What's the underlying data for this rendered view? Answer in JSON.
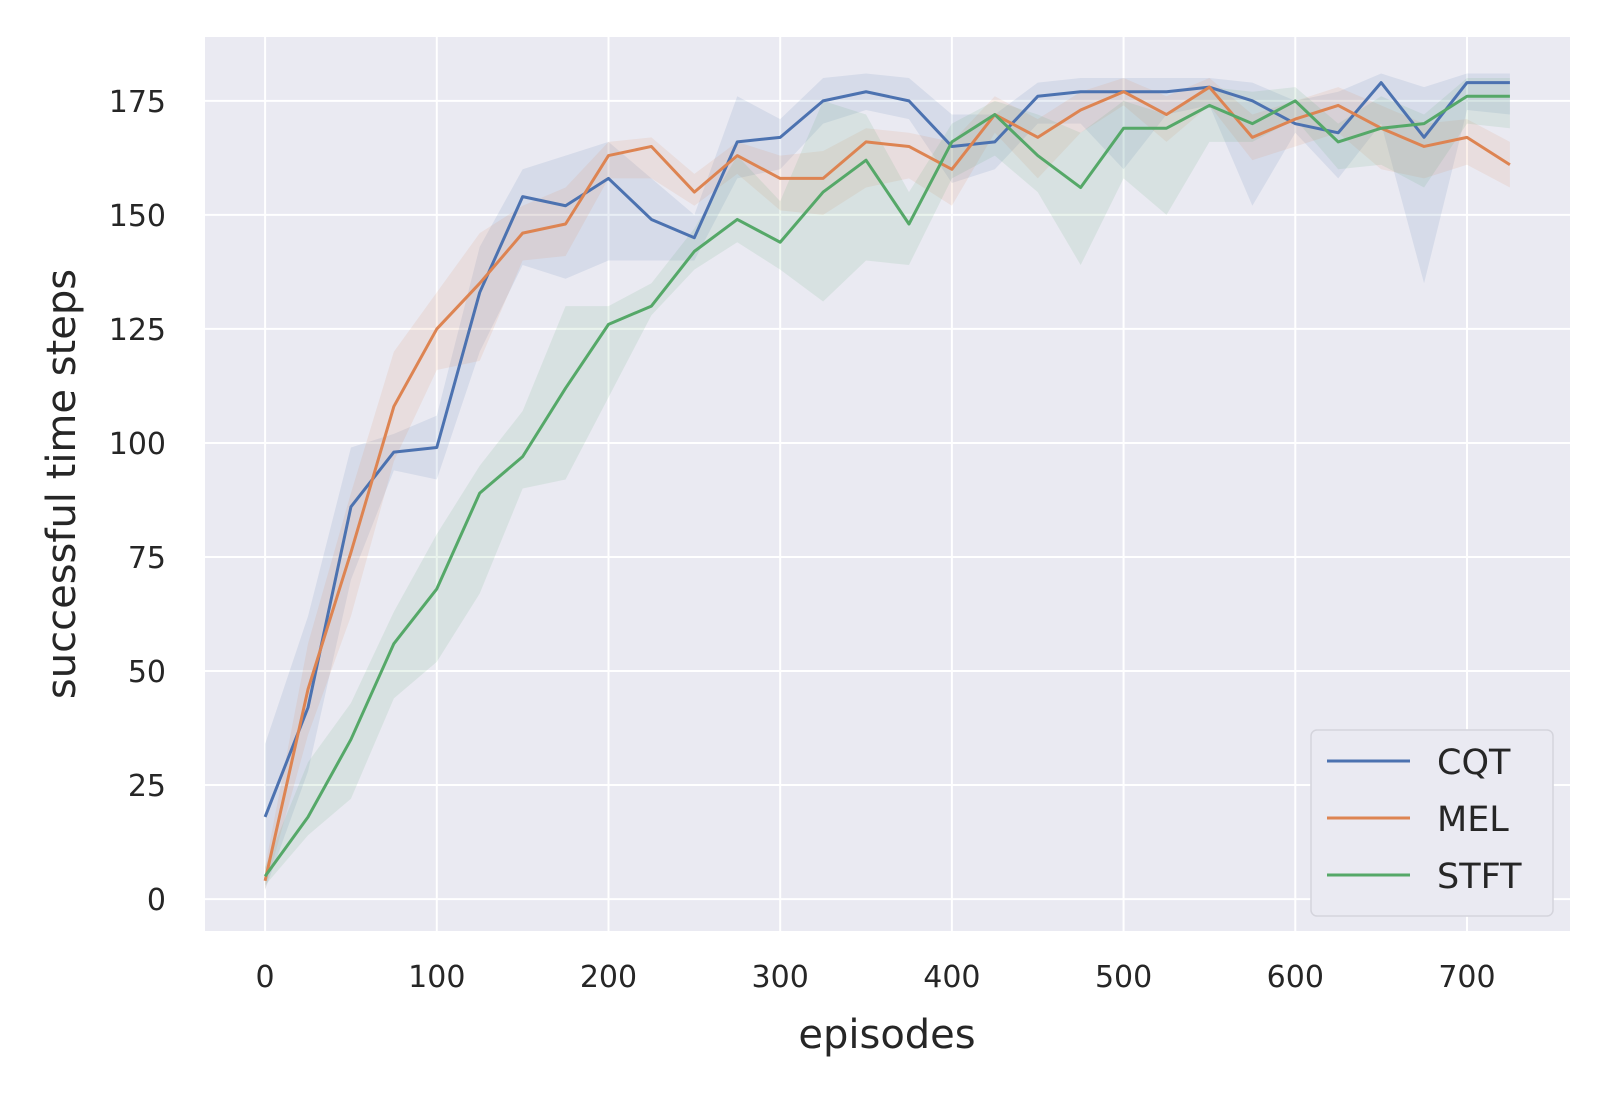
{
  "chart_data": {
    "type": "line",
    "xlabel": "episodes",
    "ylabel": "successful time steps",
    "xlim": [
      -35,
      760
    ],
    "ylim": [
      -7,
      189
    ],
    "xticks": [
      0,
      100,
      200,
      300,
      400,
      500,
      600,
      700
    ],
    "yticks": [
      0,
      25,
      50,
      75,
      100,
      125,
      150,
      175
    ],
    "grid": true,
    "legend_position": "lower-right",
    "x": [
      0,
      25,
      50,
      75,
      100,
      125,
      150,
      175,
      200,
      225,
      250,
      275,
      300,
      325,
      350,
      375,
      400,
      425,
      450,
      475,
      500,
      525,
      550,
      575,
      600,
      625,
      650,
      675,
      700,
      725
    ],
    "series": [
      {
        "name": "CQT",
        "color": "#4c72b0",
        "values": [
          18,
          42,
          86,
          98,
          99,
          133,
          154,
          152,
          158,
          149,
          145,
          166,
          167,
          175,
          177,
          175,
          165,
          166,
          176,
          177,
          177,
          177,
          178,
          175,
          170,
          168,
          179,
          167,
          179,
          179
        ],
        "band_low": [
          2,
          28,
          70,
          94,
          92,
          120,
          139,
          136,
          140,
          140,
          140,
          158,
          160,
          170,
          173,
          171,
          157,
          160,
          170,
          170,
          160,
          172,
          174,
          152,
          168,
          158,
          170,
          135,
          173,
          172
        ],
        "band_high": [
          34,
          62,
          99,
          102,
          106,
          143,
          160,
          163,
          166,
          158,
          150,
          176,
          171,
          180,
          181,
          180,
          172,
          172,
          179,
          180,
          180,
          180,
          180,
          179,
          175,
          177,
          181,
          178,
          181,
          181
        ]
      },
      {
        "name": "MEL",
        "color": "#dd8452",
        "values": [
          4,
          46,
          76,
          108,
          125,
          135,
          146,
          148,
          163,
          165,
          155,
          163,
          158,
          158,
          166,
          165,
          160,
          172,
          167,
          173,
          177,
          172,
          178,
          167,
          171,
          174,
          169,
          165,
          167,
          161
        ],
        "band_low": [
          2,
          36,
          62,
          96,
          116,
          118,
          140,
          141,
          158,
          158,
          152,
          159,
          151,
          150,
          156,
          158,
          152,
          168,
          158,
          168,
          174,
          166,
          174,
          162,
          165,
          168,
          160,
          158,
          161,
          156
        ],
        "band_high": [
          7,
          56,
          89,
          120,
          133,
          146,
          152,
          156,
          166,
          167,
          159,
          166,
          163,
          164,
          169,
          168,
          166,
          176,
          171,
          177,
          180,
          176,
          180,
          172,
          175,
          178,
          174,
          170,
          171,
          166
        ]
      },
      {
        "name": "STFT",
        "color": "#55a868",
        "values": [
          5,
          18,
          35,
          56,
          68,
          89,
          97,
          112,
          126,
          130,
          142,
          149,
          144,
          155,
          162,
          148,
          166,
          172,
          163,
          156,
          169,
          169,
          174,
          170,
          175,
          166,
          169,
          170,
          176,
          176
        ],
        "band_low": [
          3,
          14,
          22,
          44,
          52,
          67,
          90,
          92,
          110,
          128,
          138,
          144,
          138,
          131,
          140,
          139,
          158,
          163,
          155,
          139,
          158,
          150,
          166,
          166,
          171,
          160,
          161,
          156,
          170,
          169
        ],
        "band_high": [
          7,
          30,
          43,
          63,
          80,
          95,
          107,
          130,
          130,
          135,
          147,
          163,
          153,
          175,
          172,
          155,
          170,
          175,
          172,
          168,
          175,
          172,
          178,
          177,
          178,
          170,
          176,
          172,
          180,
          180
        ]
      }
    ]
  }
}
